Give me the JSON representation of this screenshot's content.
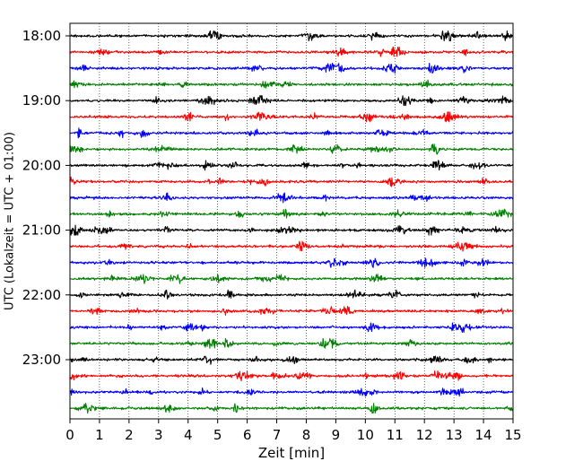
{
  "chart_data": {
    "type": "line",
    "title": "",
    "xlabel": "Zeit  [min]",
    "ylabel": "UTC (Lokalzeit = UTC + 01:00)",
    "xlim": [
      0,
      15
    ],
    "x_ticks": [
      0,
      1,
      2,
      3,
      4,
      5,
      6,
      7,
      8,
      9,
      10,
      11,
      12,
      13,
      14,
      15
    ],
    "y_tick_labels": [
      "18:00",
      "19:00",
      "20:00",
      "21:00",
      "22:00",
      "23:00"
    ],
    "grid": "vertical dotted",
    "trace_interval_minutes": 15,
    "start_time": "18:00",
    "trace_count": 24,
    "colors": [
      "#000000",
      "#ff0000",
      "#0000ff",
      "#008000"
    ]
  }
}
